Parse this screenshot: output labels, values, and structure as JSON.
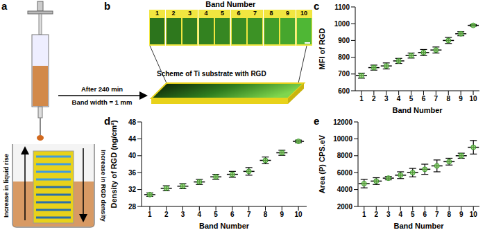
{
  "panels": {
    "a": {
      "label": "a",
      "arrow_label_top": "After 240 min",
      "arrow_label_bottom": "Band width = 1 mm",
      "left_arrow_text": "Increase in liquid rise",
      "right_arrow_text": "Increase in RGD density"
    },
    "b": {
      "label": "b",
      "title": "Band Number",
      "band_labels": [
        1,
        2,
        3,
        4,
        5,
        6,
        7,
        8,
        9,
        10
      ],
      "band_colors": [
        "#2c741c",
        "#2e781d",
        "#317e1f",
        "#338220",
        "#368722",
        "#398c23",
        "#3c9225",
        "#419d29",
        "#46a62d",
        "#4fb735"
      ],
      "scheme_label": "Scheme of Ti substrate with RGD"
    }
  },
  "chart_data": [
    {
      "panel": "c",
      "type": "scatter",
      "x_label": "Band Number",
      "y_label": "MFI of RGD",
      "x": [
        1,
        2,
        3,
        4,
        5,
        6,
        7,
        8,
        9,
        10
      ],
      "values": [
        690,
        738,
        748,
        778,
        810,
        828,
        843,
        900,
        940,
        990
      ],
      "errors": [
        15,
        15,
        18,
        15,
        15,
        18,
        18,
        18,
        12,
        5
      ],
      "xlim": [
        0.5,
        10.5
      ],
      "xticks": [
        1,
        2,
        3,
        4,
        5,
        6,
        7,
        8,
        9,
        10
      ],
      "ylim": [
        600,
        1100
      ],
      "yticks": [
        600,
        700,
        800,
        900,
        1000,
        1100
      ],
      "color": "#7cd05a",
      "marker": "circle"
    },
    {
      "panel": "d",
      "type": "scatter",
      "x_label": "Band Number",
      "y_label": "Density of RGD (ng/cm²)",
      "x": [
        1,
        2,
        3,
        4,
        5,
        6,
        7,
        8,
        9,
        10
      ],
      "values": [
        30.8,
        32.3,
        32.8,
        33.8,
        35.0,
        35.6,
        36.3,
        38.9,
        40.7,
        43.4
      ],
      "errors": [
        0.4,
        0.6,
        0.6,
        0.6,
        0.6,
        0.7,
        0.9,
        0.8,
        0.6,
        0.3
      ],
      "xlim": [
        0.5,
        10.5
      ],
      "xticks": [
        1,
        2,
        3,
        4,
        5,
        6,
        7,
        8,
        9,
        10
      ],
      "ylim": [
        28,
        48
      ],
      "yticks": [
        28,
        32,
        36,
        40,
        44,
        48
      ],
      "color": "#7cd05a",
      "marker": "circle"
    },
    {
      "panel": "e",
      "type": "scatter",
      "x_label": "Band Number",
      "y_label": "Area (P) CPS.eV",
      "x": [
        1,
        2,
        3,
        4,
        5,
        6,
        7,
        8,
        9,
        10
      ],
      "values": [
        4700,
        5000,
        5350,
        5700,
        6000,
        6400,
        6800,
        7300,
        8000,
        9000
      ],
      "errors": [
        500,
        400,
        200,
        400,
        500,
        600,
        700,
        400,
        300,
        800
      ],
      "xlim": [
        0.5,
        10.5
      ],
      "xticks": [
        1,
        2,
        3,
        4,
        5,
        6,
        7,
        8,
        9,
        10
      ],
      "ylim": [
        2000,
        12000
      ],
      "yticks": [
        2000,
        4000,
        6000,
        8000,
        10000,
        12000
      ],
      "color": "#7cd05a",
      "marker": "circle"
    }
  ]
}
